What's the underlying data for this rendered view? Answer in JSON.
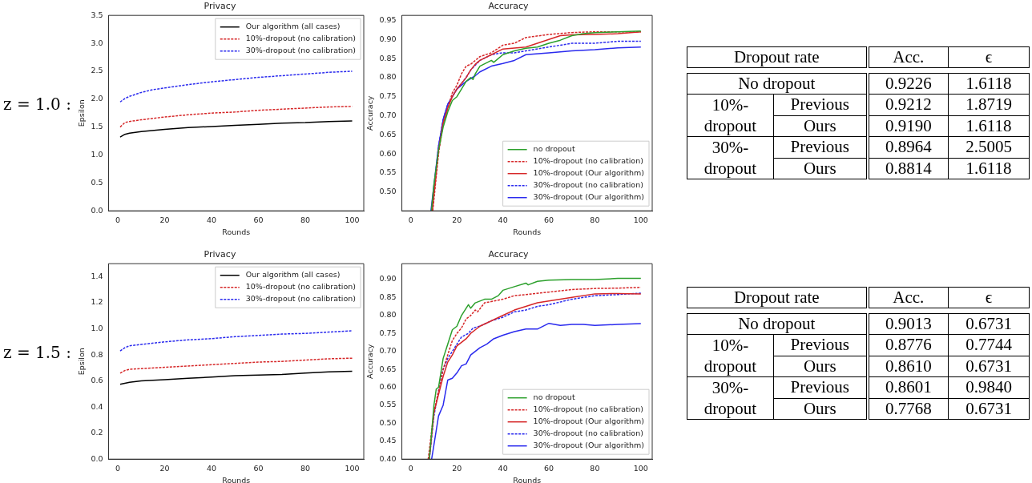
{
  "chart_data": [
    {
      "type": "line",
      "title": "Privacy",
      "xlabel": "Rounds",
      "ylabel": "Epsilon",
      "annotations": [
        "z = 1.0 :"
      ],
      "xlim": [
        -3.95,
        104.95
      ],
      "ylim": [
        0,
        3.5
      ],
      "xticks": [
        0,
        20,
        40,
        60,
        80,
        100
      ],
      "yticks": [
        {
          "value": 0,
          "label": "0.0"
        },
        {
          "value": 0.5,
          "label": "0.5"
        },
        {
          "value": 1,
          "label": "1.0"
        },
        {
          "value": 1.5,
          "label": "1.5"
        },
        {
          "value": 2,
          "label": "2.0"
        },
        {
          "value": 2.5,
          "label": "2.5"
        },
        {
          "value": 3,
          "label": "3.0"
        },
        {
          "value": 3.5,
          "label": "3.5"
        }
      ],
      "legend": "top right",
      "marker": "none",
      "series": [
        {
          "name": "Our algorithm (all cases)",
          "color": "#000000",
          "line_style": "solid",
          "x": [
            1,
            3,
            5,
            10,
            20,
            30,
            40,
            50,
            60,
            70,
            80,
            90,
            100
          ],
          "values": [
            1.32,
            1.37,
            1.39,
            1.42,
            1.46,
            1.49,
            1.51,
            1.53,
            1.55,
            1.57,
            1.58,
            1.6,
            1.61
          ]
        },
        {
          "name": "10%-dropout (no calibration)",
          "color": "#d62728",
          "line_style": "dashed",
          "x": [
            1,
            3,
            5,
            10,
            20,
            30,
            40,
            50,
            60,
            70,
            80,
            90,
            100
          ],
          "values": [
            1.5,
            1.58,
            1.6,
            1.63,
            1.68,
            1.72,
            1.75,
            1.77,
            1.8,
            1.82,
            1.84,
            1.86,
            1.87
          ]
        },
        {
          "name": "30%-dropout (no calibration)",
          "color": "#2a2aee",
          "line_style": "dashed",
          "x": [
            1,
            3,
            5,
            10,
            15,
            20,
            30,
            40,
            50,
            60,
            70,
            80,
            90,
            100
          ],
          "values": [
            1.95,
            2.01,
            2.05,
            2.12,
            2.17,
            2.2,
            2.26,
            2.31,
            2.35,
            2.39,
            2.42,
            2.45,
            2.48,
            2.5
          ]
        }
      ]
    },
    {
      "type": "line",
      "title": "Accuracy",
      "xlabel": "Rounds",
      "ylabel": "Accuracy",
      "xlim": [
        -3.95,
        104.95
      ],
      "ylim": [
        0.451,
        0.963
      ],
      "xticks": [
        0,
        20,
        40,
        60,
        80,
        100
      ],
      "yticks": [
        {
          "value": 0.5,
          "label": "0.50"
        },
        {
          "value": 0.55,
          "label": "0.55"
        },
        {
          "value": 0.6,
          "label": "0.60"
        },
        {
          "value": 0.65,
          "label": "0.65"
        },
        {
          "value": 0.7,
          "label": "0.70"
        },
        {
          "value": 0.75,
          "label": "0.75"
        },
        {
          "value": 0.8,
          "label": "0.80"
        },
        {
          "value": 0.85,
          "label": "0.85"
        },
        {
          "value": 0.9,
          "label": "0.90"
        },
        {
          "value": 0.95,
          "label": "0.95"
        }
      ],
      "legend": "bottom right",
      "marker": "none",
      "series": [
        {
          "name": "no dropout",
          "color": "#2ca02c",
          "line_style": "solid",
          "x": [
            8.9,
            10,
            12,
            14,
            16,
            18,
            20,
            22,
            24,
            26,
            27,
            28,
            30,
            35,
            36,
            40,
            45,
            50,
            55,
            60,
            65,
            70,
            75,
            80,
            90,
            100
          ],
          "values": [
            0.451,
            0.52,
            0.61,
            0.67,
            0.71,
            0.74,
            0.75,
            0.77,
            0.79,
            0.8,
            0.795,
            0.81,
            0.83,
            0.845,
            0.84,
            0.86,
            0.87,
            0.877,
            0.88,
            0.89,
            0.898,
            0.91,
            0.915,
            0.918,
            0.92,
            0.922
          ]
        },
        {
          "name": "10%-dropout (no calibration)",
          "color": "#d62728",
          "line_style": "dashed",
          "x": [
            9.5,
            12,
            14,
            16,
            18,
            20,
            22,
            24,
            26,
            30,
            35,
            40,
            45,
            50,
            60,
            70,
            80,
            90,
            100
          ],
          "values": [
            0.451,
            0.6,
            0.68,
            0.72,
            0.76,
            0.78,
            0.81,
            0.83,
            0.835,
            0.855,
            0.865,
            0.885,
            0.89,
            0.905,
            0.913,
            0.918,
            0.92,
            0.92,
            0.92
          ]
        },
        {
          "name": "10%-dropout (Our algorithm)",
          "color": "#d62728",
          "line_style": "solid",
          "x": [
            9.3,
            12,
            14,
            16,
            18,
            20,
            24,
            26,
            28,
            30,
            35,
            40,
            50,
            55,
            60,
            65,
            70,
            80,
            90,
            100
          ],
          "values": [
            0.451,
            0.61,
            0.68,
            0.72,
            0.75,
            0.77,
            0.8,
            0.82,
            0.835,
            0.845,
            0.86,
            0.875,
            0.88,
            0.89,
            0.9,
            0.91,
            0.912,
            0.913,
            0.915,
            0.92
          ]
        },
        {
          "name": "30%-dropout (no calibration)",
          "color": "#2a2aee",
          "line_style": "dashed",
          "x": [
            9,
            12,
            14,
            16,
            18,
            20,
            24,
            26,
            30,
            35,
            40,
            45,
            50,
            60,
            70,
            80,
            90,
            100
          ],
          "values": [
            0.451,
            0.62,
            0.69,
            0.73,
            0.75,
            0.77,
            0.8,
            0.82,
            0.845,
            0.86,
            0.865,
            0.865,
            0.87,
            0.88,
            0.89,
            0.89,
            0.895,
            0.895
          ]
        },
        {
          "name": "30%-dropout (Our algorithm)",
          "color": "#2a2aee",
          "line_style": "solid",
          "x": [
            8.7,
            12,
            14,
            16,
            18,
            20,
            24,
            28,
            30,
            35,
            40,
            45,
            50,
            60,
            70,
            80,
            90,
            100
          ],
          "values": [
            0.451,
            0.62,
            0.69,
            0.73,
            0.75,
            0.77,
            0.79,
            0.805,
            0.815,
            0.83,
            0.837,
            0.845,
            0.86,
            0.865,
            0.87,
            0.873,
            0.878,
            0.88
          ]
        }
      ]
    },
    {
      "type": "other",
      "annotations": [
        "Dropout rate",
        "Acc.",
        "ϵ",
        "No dropout",
        "0.9226",
        "1.6118",
        "10%-dropout",
        "Previous",
        "0.9212",
        "1.8719",
        "Ours",
        "0.9190",
        "1.6118",
        "30%-dropout",
        "Previous",
        "0.8964",
        "2.5005",
        "Ours",
        "0.8814",
        "1.6118"
      ]
    },
    {
      "type": "line",
      "title": "Privacy",
      "xlabel": "Rounds",
      "ylabel": "Epsilon",
      "annotations": [
        "z = 1.5 :"
      ],
      "xlim": [
        -3.95,
        104.95
      ],
      "ylim": [
        0,
        1.5
      ],
      "xticks": [
        0,
        20,
        40,
        60,
        80,
        100
      ],
      "yticks": [
        {
          "value": 0,
          "label": "0.0"
        },
        {
          "value": 0.2,
          "label": "0.2"
        },
        {
          "value": 0.4,
          "label": "0.4"
        },
        {
          "value": 0.6,
          "label": "0.6"
        },
        {
          "value": 0.8,
          "label": "0.8"
        },
        {
          "value": 1,
          "label": "1.0"
        },
        {
          "value": 1.2,
          "label": "1.2"
        },
        {
          "value": 1.4,
          "label": "1.4"
        }
      ],
      "legend": "top right",
      "marker": "none",
      "series": [
        {
          "name": "Our algorithm (all cases)",
          "color": "#000000",
          "line_style": "solid",
          "x": [
            1,
            5,
            10,
            20,
            30,
            40,
            50,
            60,
            70,
            80,
            90,
            100
          ],
          "values": [
            0.575,
            0.59,
            0.6,
            0.61,
            0.62,
            0.63,
            0.64,
            0.645,
            0.65,
            0.66,
            0.67,
            0.675
          ]
        },
        {
          "name": "10%-dropout (no calibration)",
          "color": "#d62728",
          "line_style": "dashed",
          "x": [
            1,
            3,
            5,
            10,
            20,
            30,
            40,
            50,
            60,
            70,
            80,
            90,
            100
          ],
          "values": [
            0.66,
            0.68,
            0.69,
            0.695,
            0.705,
            0.715,
            0.725,
            0.735,
            0.745,
            0.75,
            0.76,
            0.77,
            0.775
          ]
        },
        {
          "name": "30%-dropout (no calibration)",
          "color": "#2a2aee",
          "line_style": "dashed",
          "x": [
            1,
            3,
            5,
            10,
            20,
            30,
            40,
            50,
            60,
            70,
            80,
            90,
            100
          ],
          "values": [
            0.83,
            0.855,
            0.87,
            0.88,
            0.9,
            0.915,
            0.925,
            0.94,
            0.95,
            0.96,
            0.965,
            0.975,
            0.985
          ]
        }
      ]
    },
    {
      "type": "line",
      "title": "Accuracy",
      "xlabel": "Rounds",
      "ylabel": "Accuracy",
      "xlim": [
        -3.95,
        104.95
      ],
      "ylim": [
        0.4,
        0.944
      ],
      "xticks": [
        0,
        20,
        40,
        60,
        80,
        100
      ],
      "yticks": [
        {
          "value": 0.4,
          "label": "0.40"
        },
        {
          "value": 0.45,
          "label": "0.45"
        },
        {
          "value": 0.5,
          "label": "0.50"
        },
        {
          "value": 0.55,
          "label": "0.55"
        },
        {
          "value": 0.6,
          "label": "0.60"
        },
        {
          "value": 0.65,
          "label": "0.65"
        },
        {
          "value": 0.7,
          "label": "0.70"
        },
        {
          "value": 0.75,
          "label": "0.75"
        },
        {
          "value": 0.8,
          "label": "0.80"
        },
        {
          "value": 0.85,
          "label": "0.85"
        },
        {
          "value": 0.9,
          "label": "0.90"
        }
      ],
      "legend": "bottom right",
      "marker": "none",
      "series": [
        {
          "name": "no dropout",
          "color": "#2ca02c",
          "line_style": "solid",
          "x": [
            8,
            10,
            11,
            12,
            14,
            16,
            18,
            20,
            22,
            24,
            25,
            26,
            28,
            30,
            32,
            35,
            38,
            40,
            45,
            50,
            51,
            55,
            60,
            70,
            80,
            90,
            100
          ],
          "values": [
            0.4,
            0.55,
            0.595,
            0.6,
            0.68,
            0.72,
            0.76,
            0.77,
            0.8,
            0.82,
            0.83,
            0.82,
            0.835,
            0.84,
            0.845,
            0.845,
            0.855,
            0.87,
            0.88,
            0.89,
            0.885,
            0.895,
            0.898,
            0.9,
            0.9,
            0.903,
            0.903
          ]
        },
        {
          "name": "10%-dropout (no calibration)",
          "color": "#d62728",
          "line_style": "dashed",
          "x": [
            7.5,
            10,
            12,
            14,
            16,
            18,
            20,
            22,
            24,
            26,
            28,
            29,
            32,
            40,
            45,
            50,
            60,
            70,
            80,
            90,
            100
          ],
          "values": [
            0.4,
            0.53,
            0.59,
            0.65,
            0.69,
            0.73,
            0.75,
            0.765,
            0.79,
            0.8,
            0.815,
            0.81,
            0.835,
            0.845,
            0.855,
            0.858,
            0.865,
            0.872,
            0.875,
            0.876,
            0.878
          ]
        },
        {
          "name": "10%-dropout (Our algorithm)",
          "color": "#d62728",
          "line_style": "solid",
          "x": [
            8,
            10,
            12,
            14,
            16,
            18,
            20,
            22,
            24,
            26,
            28,
            30,
            35,
            40,
            45,
            50,
            55,
            60,
            65,
            70,
            80,
            90,
            100
          ],
          "values": [
            0.4,
            0.53,
            0.58,
            0.63,
            0.67,
            0.69,
            0.715,
            0.725,
            0.735,
            0.75,
            0.76,
            0.77,
            0.785,
            0.8,
            0.815,
            0.825,
            0.835,
            0.84,
            0.845,
            0.85,
            0.86,
            0.861,
            0.86
          ]
        },
        {
          "name": "30%-dropout (no calibration)",
          "color": "#2a2aee",
          "line_style": "dashed",
          "x": [
            8,
            10,
            12,
            14,
            16,
            18,
            20,
            22,
            25,
            27,
            30,
            35,
            40,
            45,
            50,
            55,
            60,
            70,
            80,
            90,
            100
          ],
          "values": [
            0.4,
            0.52,
            0.59,
            0.65,
            0.68,
            0.7,
            0.72,
            0.74,
            0.75,
            0.765,
            0.77,
            0.785,
            0.795,
            0.81,
            0.815,
            0.825,
            0.83,
            0.845,
            0.855,
            0.858,
            0.862
          ]
        },
        {
          "name": "30%-dropout (Our algorithm)",
          "color": "#2a2aee",
          "line_style": "solid",
          "x": [
            9,
            10,
            12,
            14,
            16,
            18,
            20,
            22,
            24,
            26,
            28,
            30,
            33,
            36,
            40,
            45,
            50,
            55,
            60,
            65,
            70,
            75,
            80,
            90,
            100
          ],
          "values": [
            0.4,
            0.44,
            0.52,
            0.55,
            0.62,
            0.625,
            0.64,
            0.66,
            0.665,
            0.69,
            0.7,
            0.71,
            0.72,
            0.735,
            0.745,
            0.755,
            0.762,
            0.762,
            0.778,
            0.772,
            0.775,
            0.775,
            0.772,
            0.775,
            0.777
          ]
        }
      ]
    },
    {
      "type": "other",
      "annotations": [
        "Dropout rate",
        "Acc.",
        "ϵ",
        "No dropout",
        "0.9013",
        "0.6731",
        "10%-dropout",
        "Previous",
        "0.8776",
        "0.7744",
        "Ours",
        "0.8610",
        "0.6731",
        "30%-dropout",
        "Previous",
        "0.8601",
        "0.9840",
        "Ours",
        "0.7768",
        "0.6731"
      ]
    }
  ]
}
